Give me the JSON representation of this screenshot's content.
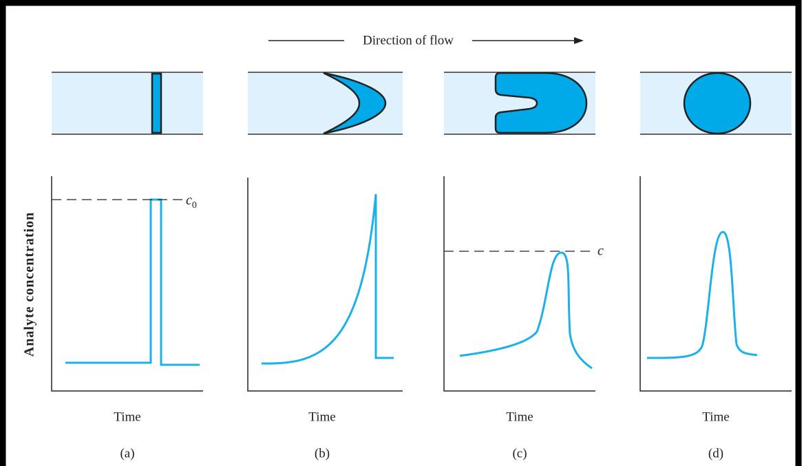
{
  "header": {
    "title": "Direction of flow"
  },
  "y_axis_label": "Analyte concentration",
  "panels": [
    {
      "x_axis_label": "Time",
      "caption": "(a)",
      "annotation": {
        "label": "c",
        "subscript": "0"
      }
    },
    {
      "x_axis_label": "Time",
      "caption": "(b)"
    },
    {
      "x_axis_label": "Time",
      "caption": "(c)",
      "annotation": {
        "label": "c"
      }
    },
    {
      "x_axis_label": "Time",
      "caption": "(d)"
    }
  ]
}
